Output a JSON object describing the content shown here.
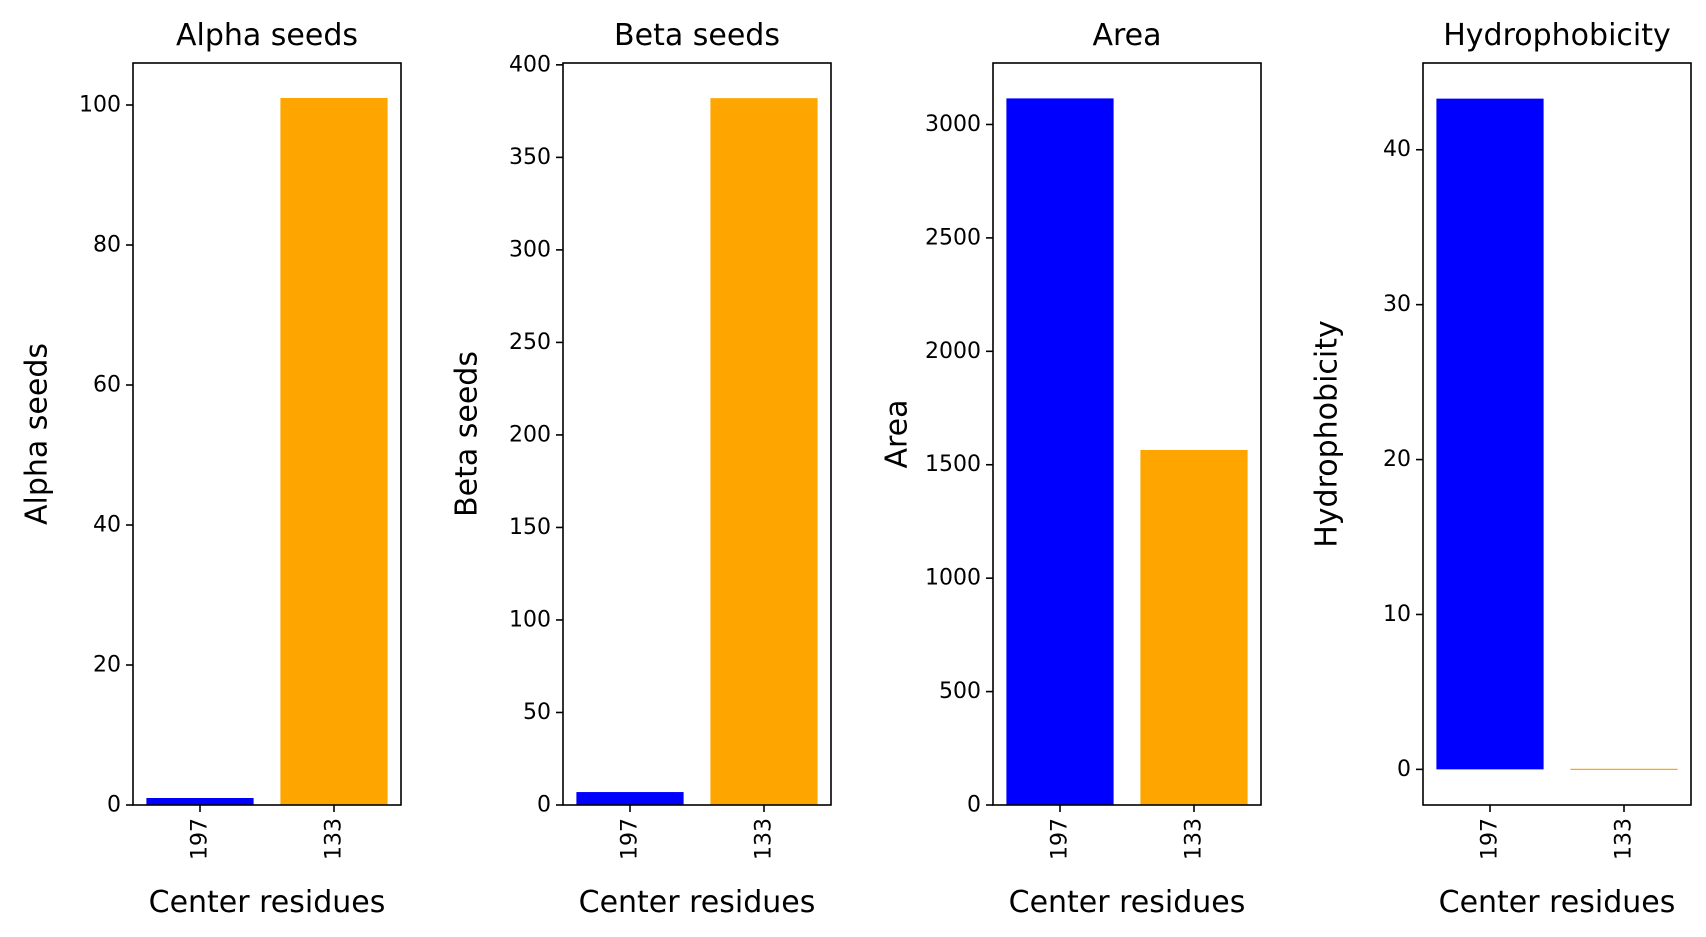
{
  "chart_data": [
    {
      "type": "bar",
      "title": "Alpha seeds",
      "xlabel": "Center residues",
      "ylabel": "Alpha seeds",
      "categories": [
        "197",
        "133"
      ],
      "values": [
        1,
        101
      ],
      "colors": [
        "#0000ff",
        "#ffa500"
      ],
      "ylim": [
        0,
        106
      ],
      "yticks": [
        0,
        20,
        40,
        60,
        80,
        100
      ],
      "grid": false
    },
    {
      "type": "bar",
      "title": "Beta seeds",
      "xlabel": "Center residues",
      "ylabel": "Beta seeds",
      "categories": [
        "197",
        "133"
      ],
      "values": [
        7,
        382
      ],
      "colors": [
        "#0000ff",
        "#ffa500"
      ],
      "ylim": [
        0,
        401
      ],
      "yticks": [
        0,
        50,
        100,
        150,
        200,
        250,
        300,
        350,
        400
      ],
      "grid": false
    },
    {
      "type": "bar",
      "title": "Area",
      "xlabel": "Center residues",
      "ylabel": "Area",
      "categories": [
        "197",
        "133"
      ],
      "values": [
        3115,
        1565
      ],
      "colors": [
        "#0000ff",
        "#ffa500"
      ],
      "ylim": [
        0,
        3271
      ],
      "yticks": [
        0,
        500,
        1000,
        1500,
        2000,
        2500,
        3000
      ],
      "grid": false
    },
    {
      "type": "bar",
      "title": "Hydrophobicity",
      "xlabel": "Center residues",
      "ylabel": "Hydrophobicity",
      "categories": [
        "197",
        "133"
      ],
      "values": [
        43.3,
        0
      ],
      "colors": [
        "#0000ff",
        "#ffa500"
      ],
      "ylim": [
        -2.3,
        45.6
      ],
      "yticks": [
        0,
        10,
        20,
        30,
        40
      ],
      "grid": false
    }
  ]
}
